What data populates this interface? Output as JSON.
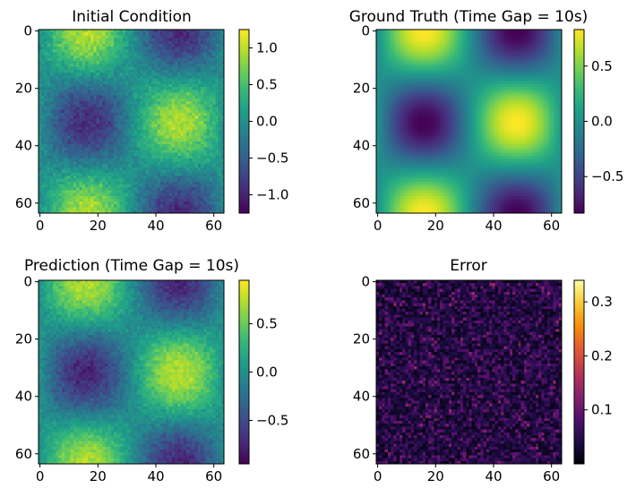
{
  "chart_data": [
    {
      "type": "heatmap",
      "title": "Initial Condition",
      "field": "noisy",
      "colormap": "viridis",
      "grid": false,
      "xlim": [
        0,
        63
      ],
      "ylim": [
        0,
        63
      ],
      "xticks": [
        "0",
        "20",
        "40",
        "60"
      ],
      "yticks": [
        "0",
        "20",
        "40",
        "60"
      ],
      "xtick_values": [
        0,
        20,
        40,
        60
      ],
      "ytick_values": [
        0,
        20,
        40,
        60
      ],
      "colorbar": {
        "range": [
          -1.25,
          1.25
        ],
        "ticks": [
          "1.0",
          "0.5",
          "0.0",
          "−0.5",
          "−1.0"
        ],
        "tick_values": [
          1.0,
          0.5,
          0.0,
          -0.5,
          -1.0
        ]
      }
    },
    {
      "type": "heatmap",
      "title": "Ground Truth (Time Gap = 10s)",
      "field": "smooth",
      "colormap": "viridis",
      "grid": false,
      "xlim": [
        0,
        63
      ],
      "ylim": [
        0,
        63
      ],
      "xticks": [
        "0",
        "20",
        "40",
        "60"
      ],
      "yticks": [
        "0",
        "20",
        "40",
        "60"
      ],
      "xtick_values": [
        0,
        20,
        40,
        60
      ],
      "ytick_values": [
        0,
        20,
        40,
        60
      ],
      "colorbar": {
        "range": [
          -0.83,
          0.83
        ],
        "ticks": [
          "0.5",
          "0.0",
          "−0.5"
        ],
        "tick_values": [
          0.5,
          0.0,
          -0.5
        ]
      }
    },
    {
      "type": "heatmap",
      "title": "Prediction (Time Gap = 10s)",
      "field": "noisy",
      "colormap": "viridis",
      "grid": false,
      "xlim": [
        0,
        63
      ],
      "ylim": [
        0,
        63
      ],
      "xticks": [
        "0",
        "20",
        "40",
        "60"
      ],
      "yticks": [
        "0",
        "20",
        "40",
        "60"
      ],
      "xtick_values": [
        0,
        20,
        40,
        60
      ],
      "ytick_values": [
        0,
        20,
        40,
        60
      ],
      "colorbar": {
        "range": [
          -0.95,
          0.95
        ],
        "ticks": [
          "0.5",
          "0.0",
          "−0.5"
        ],
        "tick_values": [
          0.5,
          0.0,
          -0.5
        ]
      }
    },
    {
      "type": "heatmap",
      "title": "Error",
      "field": "error",
      "colormap": "inferno",
      "grid": false,
      "xlim": [
        0,
        63
      ],
      "ylim": [
        0,
        63
      ],
      "xticks": [
        "0",
        "20",
        "40",
        "60"
      ],
      "yticks": [
        "0",
        "20",
        "40",
        "60"
      ],
      "xtick_values": [
        0,
        20,
        40,
        60
      ],
      "ytick_values": [
        0,
        20,
        40,
        60
      ],
      "colorbar": {
        "range": [
          0.0,
          0.34
        ],
        "ticks": [
          "0.3",
          "0.2",
          "0.1"
        ],
        "tick_values": [
          0.3,
          0.2,
          0.1
        ]
      }
    }
  ]
}
